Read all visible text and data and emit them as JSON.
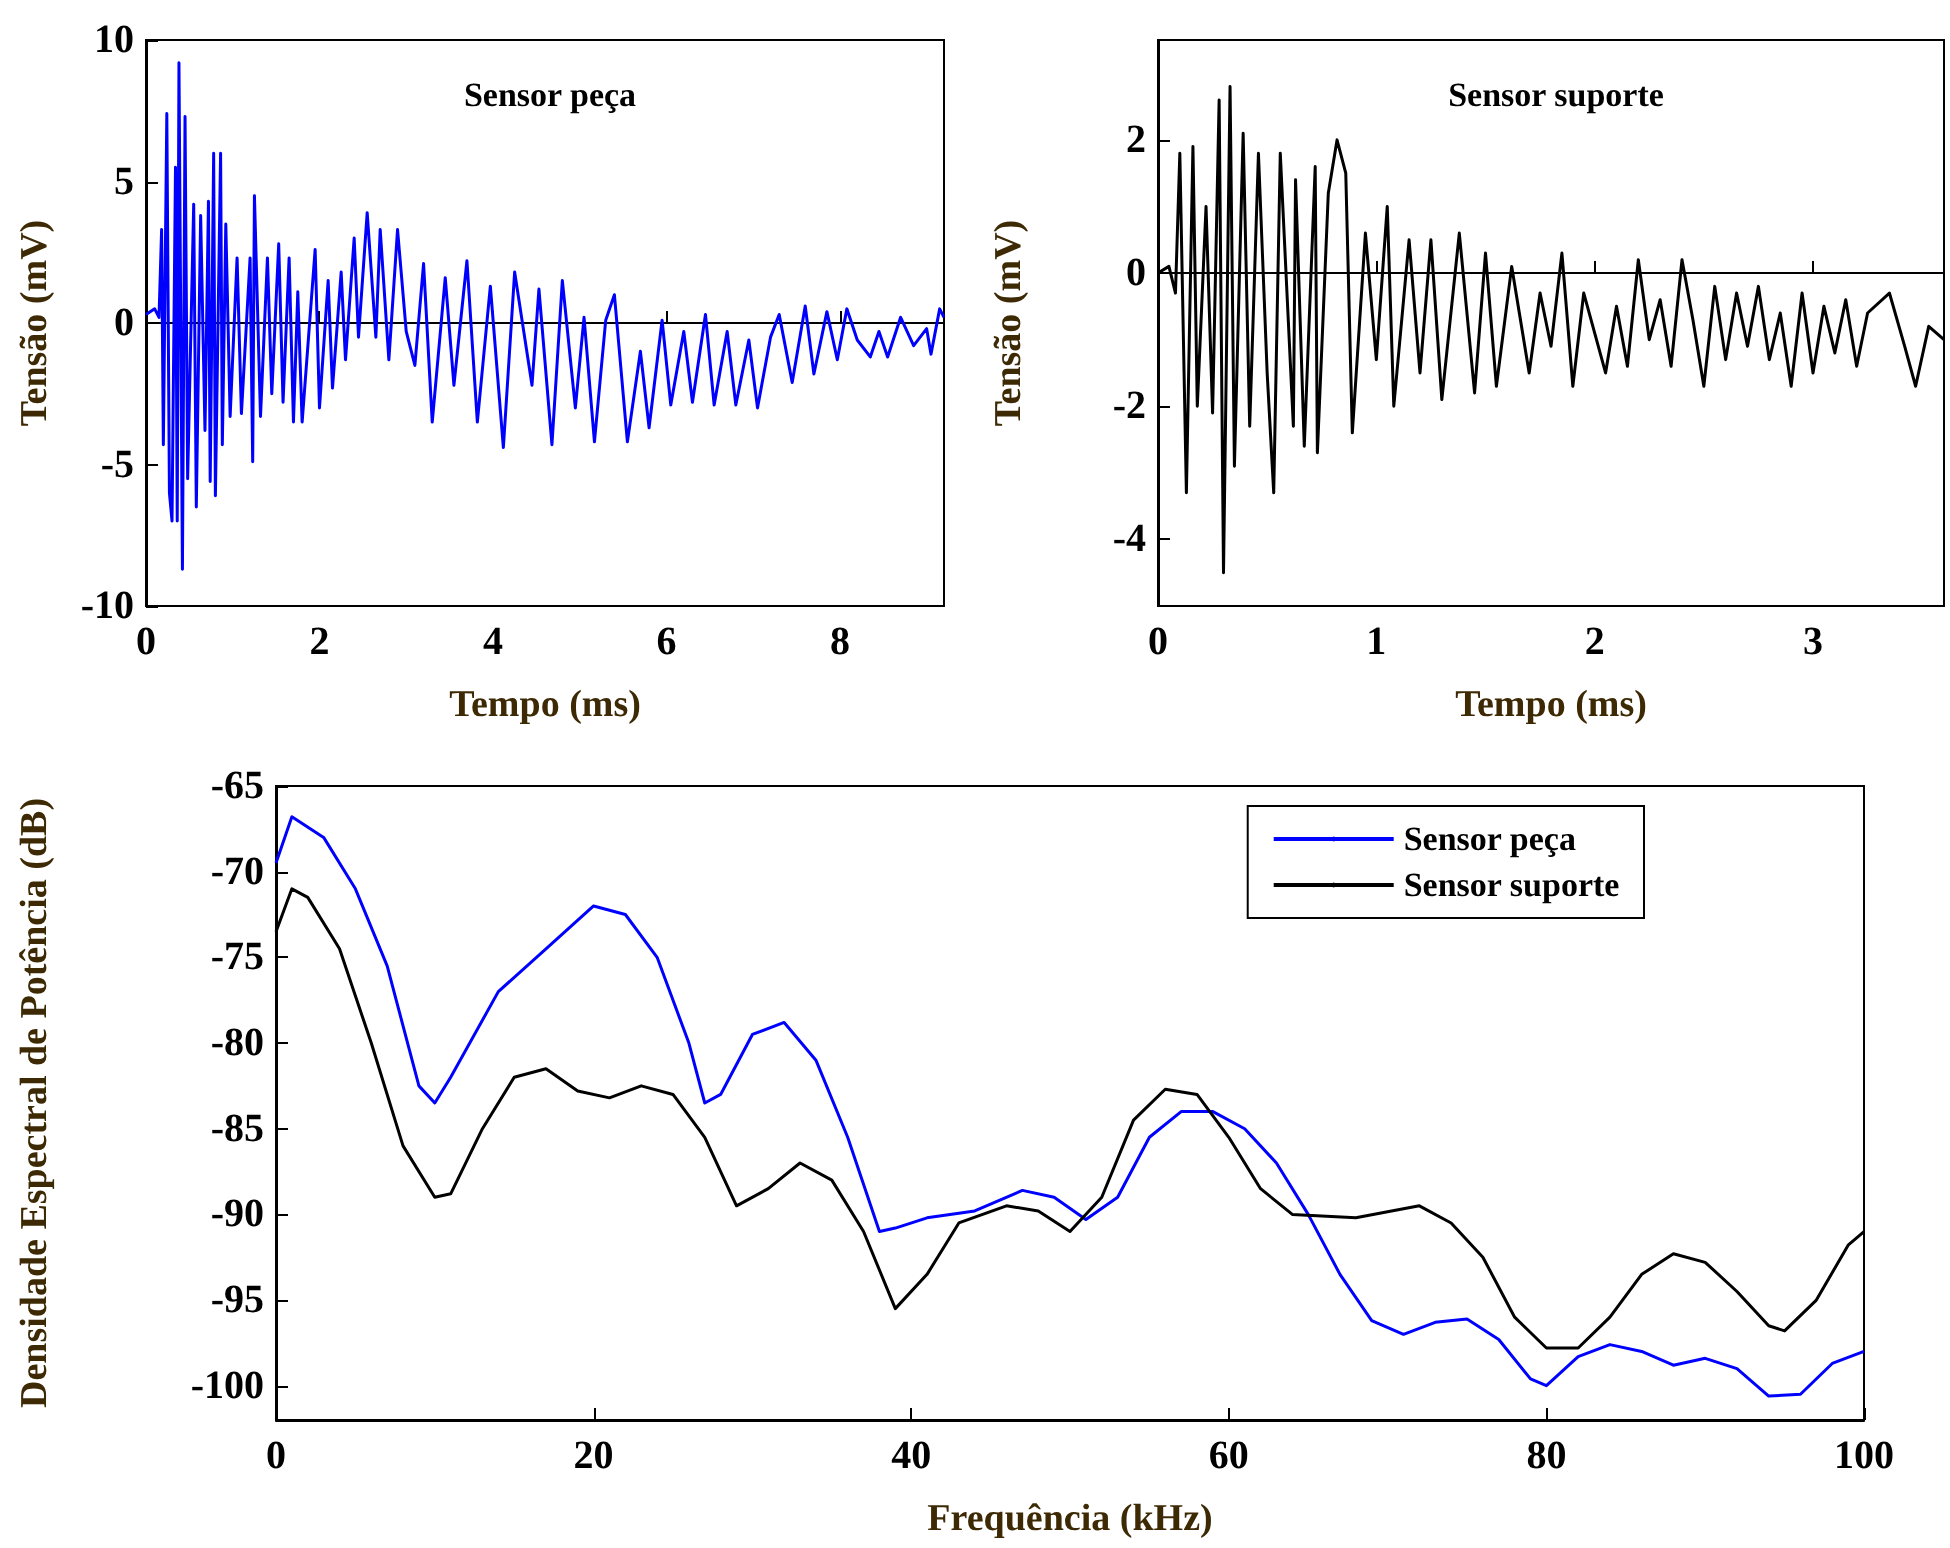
{
  "chart_data": [
    {
      "type": "line",
      "title": "Sensor peça",
      "xlabel": "Tempo (ms)",
      "ylabel": "Tensão (mV)",
      "xlim": [
        0,
        9.2
      ],
      "xticks": [
        0,
        2,
        4,
        6,
        8
      ],
      "ylim": [
        -10,
        10
      ],
      "yticks": [
        -10,
        -5,
        0,
        5,
        10
      ],
      "marker": "none",
      "legend": false,
      "series": [
        {
          "color": "#0000ff",
          "x": [
            0,
            0.1,
            0.15,
            0.18,
            0.2,
            0.24,
            0.27,
            0.3,
            0.34,
            0.36,
            0.38,
            0.42,
            0.45,
            0.48,
            0.55,
            0.58,
            0.63,
            0.68,
            0.72,
            0.74,
            0.78,
            0.8,
            0.86,
            0.88,
            0.92,
            0.97,
            1.05,
            1.1,
            1.2,
            1.23,
            1.25,
            1.32,
            1.4,
            1.45,
            1.53,
            1.58,
            1.65,
            1.7,
            1.75,
            1.8,
            1.95,
            2.0,
            2.1,
            2.15,
            2.25,
            2.3,
            2.4,
            2.45,
            2.55,
            2.65,
            2.7,
            2.8,
            2.9,
            3.0,
            3.1,
            3.2,
            3.3,
            3.45,
            3.55,
            3.7,
            3.82,
            3.97,
            4.12,
            4.25,
            4.45,
            4.53,
            4.68,
            4.8,
            4.95,
            5.05,
            5.17,
            5.3,
            5.4,
            5.55,
            5.7,
            5.8,
            5.95,
            6.05,
            6.2,
            6.3,
            6.45,
            6.55,
            6.7,
            6.8,
            6.95,
            7.05,
            7.2,
            7.3,
            7.45,
            7.6,
            7.7,
            7.85,
            7.97,
            8.08,
            8.2,
            8.35,
            8.45,
            8.55,
            8.7,
            8.85,
            9.0,
            9.05,
            9.15,
            9.2
          ],
          "values": [
            0.3,
            0.5,
            0.2,
            3.3,
            -4.3,
            7.4,
            -6.0,
            -7.0,
            5.5,
            -7.0,
            9.2,
            -8.7,
            7.3,
            -5.5,
            4.2,
            -6.5,
            3.8,
            -3.8,
            4.3,
            -5.6,
            6.0,
            -6.1,
            6.0,
            -4.3,
            3.5,
            -3.3,
            2.3,
            -3.2,
            2.3,
            -4.9,
            4.5,
            -3.3,
            2.3,
            -2.5,
            2.8,
            -2.8,
            2.3,
            -3.5,
            1.1,
            -3.5,
            2.6,
            -3.0,
            1.5,
            -2.3,
            1.8,
            -1.3,
            3.0,
            -0.5,
            3.9,
            -0.5,
            3.3,
            -1.3,
            3.3,
            -0.3,
            -1.5,
            2.1,
            -3.5,
            1.6,
            -2.2,
            2.2,
            -3.5,
            1.3,
            -4.4,
            1.8,
            -2.2,
            1.2,
            -4.3,
            1.5,
            -3.0,
            0.2,
            -4.2,
            0.1,
            1.0,
            -4.2,
            -1.0,
            -3.7,
            0.1,
            -2.9,
            -0.3,
            -2.8,
            0.3,
            -2.9,
            -0.3,
            -2.9,
            -0.6,
            -3.0,
            -0.5,
            0.3,
            -2.1,
            0.6,
            -1.8,
            0.4,
            -1.3,
            0.5,
            -0.6,
            -1.2,
            -0.3,
            -1.2,
            0.2,
            -0.8,
            -0.2,
            -1.1,
            0.5,
            0.2
          ]
        }
      ]
    },
    {
      "type": "line",
      "title": "Sensor suporte",
      "xlabel": "Tempo (ms)",
      "ylabel": "Tensão (mV)",
      "xlim": [
        0,
        3.6
      ],
      "xticks": [
        0,
        1,
        2,
        3
      ],
      "ylim": [
        -5,
        3.5
      ],
      "yticks": [
        -4,
        -2,
        0,
        2
      ],
      "marker": "none",
      "legend": false,
      "series": [
        {
          "color": "#000000",
          "x": [
            0,
            0.05,
            0.08,
            0.1,
            0.13,
            0.16,
            0.18,
            0.22,
            0.25,
            0.28,
            0.3,
            0.33,
            0.35,
            0.39,
            0.42,
            0.46,
            0.5,
            0.53,
            0.56,
            0.62,
            0.63,
            0.67,
            0.72,
            0.73,
            0.78,
            0.82,
            0.86,
            0.89,
            0.95,
            1.0,
            1.05,
            1.08,
            1.15,
            1.2,
            1.25,
            1.3,
            1.38,
            1.45,
            1.5,
            1.55,
            1.62,
            1.7,
            1.75,
            1.8,
            1.85,
            1.9,
            1.95,
            2.05,
            2.1,
            2.15,
            2.2,
            2.25,
            2.3,
            2.35,
            2.4,
            2.45,
            2.5,
            2.55,
            2.6,
            2.65,
            2.7,
            2.75,
            2.8,
            2.85,
            2.9,
            2.95,
            3.0,
            3.05,
            3.1,
            3.15,
            3.2,
            3.25,
            3.35,
            3.42,
            3.47,
            3.53,
            3.6
          ],
          "values": [
            0,
            0.1,
            -0.3,
            1.8,
            -3.3,
            1.9,
            -2.0,
            1.0,
            -2.1,
            2.6,
            -4.5,
            2.8,
            -2.9,
            2.1,
            -2.3,
            1.8,
            -1.5,
            -3.3,
            1.8,
            -2.3,
            1.4,
            -2.6,
            1.6,
            -2.7,
            1.2,
            2.0,
            1.5,
            -2.4,
            0.6,
            -1.3,
            1.0,
            -2.0,
            0.5,
            -1.5,
            0.5,
            -1.9,
            0.6,
            -1.8,
            0.3,
            -1.7,
            0.1,
            -1.5,
            -0.3,
            -1.1,
            0.3,
            -1.7,
            -0.3,
            -1.5,
            -0.5,
            -1.4,
            0.2,
            -1.0,
            -0.4,
            -1.4,
            0.2,
            -0.7,
            -1.7,
            -0.2,
            -1.3,
            -0.3,
            -1.1,
            -0.2,
            -1.3,
            -0.6,
            -1.7,
            -0.3,
            -1.5,
            -0.5,
            -1.2,
            -0.4,
            -1.4,
            -0.6,
            -0.3,
            -1.1,
            -1.7,
            -0.8,
            -1.0
          ]
        }
      ]
    },
    {
      "type": "line",
      "xlabel": "Frequência (kHz)",
      "ylabel": "Densidade Espectral de Potência (dB)",
      "xlim": [
        0,
        100
      ],
      "xticks": [
        0,
        20,
        40,
        60,
        80,
        100
      ],
      "ylim": [
        -102,
        -65
      ],
      "yticks": [
        -100,
        -95,
        -90,
        -85,
        -80,
        -75,
        -70,
        -65
      ],
      "marker": "none",
      "legend": "top right",
      "series": [
        {
          "name": "Sensor peça",
          "color": "#0000ff",
          "x": [
            0,
            1,
            3,
            5,
            7,
            9,
            10,
            11,
            14,
            17,
            20,
            22,
            24,
            26,
            27,
            28,
            30,
            32,
            34,
            36,
            38,
            39,
            41,
            44,
            47,
            49,
            51,
            53,
            55,
            57,
            59,
            61,
            63,
            65,
            67,
            69,
            71,
            73,
            75,
            77,
            79,
            80,
            82,
            84,
            86,
            88,
            90,
            92,
            94,
            96,
            98,
            100
          ],
          "values": [
            -69.5,
            -66.8,
            -68,
            -71,
            -75.5,
            -82.5,
            -83.5,
            -82,
            -77,
            -74.5,
            -72,
            -72.5,
            -75,
            -80,
            -83.5,
            -83,
            -79.5,
            -78.8,
            -81,
            -85.5,
            -91,
            -90.8,
            -90.2,
            -89.8,
            -88.6,
            -89,
            -90.3,
            -89,
            -85.5,
            -84,
            -84,
            -85,
            -87,
            -90,
            -93.5,
            -96.2,
            -97,
            -96.3,
            -96.1,
            -97.3,
            -99.6,
            -100,
            -98.3,
            -97.6,
            -98,
            -98.8,
            -98.4,
            -99,
            -100.6,
            -100.5,
            -98.7,
            -98
          ]
        },
        {
          "name": "Sensor suporte",
          "color": "#000000",
          "x": [
            0,
            1,
            2,
            4,
            6,
            8,
            10,
            11,
            13,
            15,
            17,
            19,
            21,
            23,
            25,
            27,
            29,
            31,
            33,
            35,
            37,
            39,
            41,
            43,
            46,
            48,
            50,
            52,
            54,
            56,
            58,
            60,
            62,
            64,
            68,
            72,
            74,
            76,
            78,
            80,
            82,
            84,
            86,
            88,
            90,
            92,
            94,
            95,
            97,
            99,
            100
          ],
          "values": [
            -73.5,
            -71,
            -71.5,
            -74.5,
            -80,
            -86,
            -89,
            -88.8,
            -85,
            -82,
            -81.5,
            -82.8,
            -83.2,
            -82.5,
            -83,
            -85.5,
            -89.5,
            -88.5,
            -87,
            -88,
            -91,
            -95.5,
            -93.5,
            -90.5,
            -89.5,
            -89.8,
            -91,
            -89,
            -84.5,
            -82.7,
            -83,
            -85.5,
            -88.5,
            -90,
            -90.2,
            -89.5,
            -90.5,
            -92.5,
            -96,
            -97.8,
            -97.8,
            -96,
            -93.5,
            -92.3,
            -92.8,
            -94.5,
            -96.5,
            -96.8,
            -95,
            -91.8,
            -91
          ]
        }
      ]
    }
  ]
}
